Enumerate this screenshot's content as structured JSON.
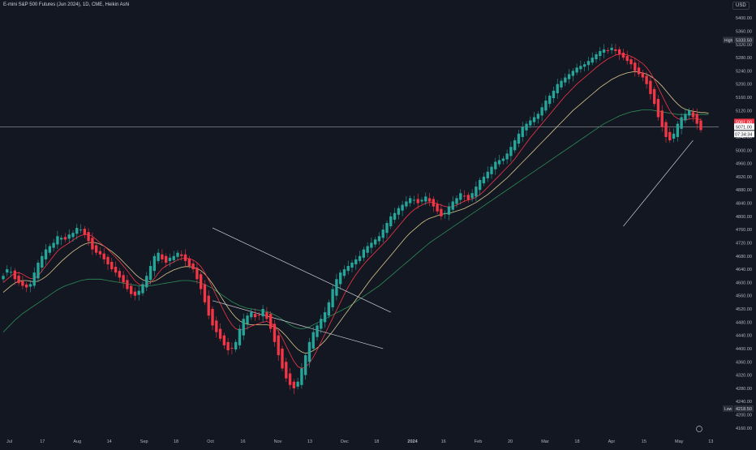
{
  "header": {
    "symbol_title": "E-mini S&P 500 Futures (Jun 2024), 1D, CME, Heikin Ashi",
    "currency": "USD"
  },
  "colors": {
    "background": "#131722",
    "bull": "#26a69a",
    "bear": "#f23645",
    "ma_fast": "#f23645",
    "ma_mid": "#d8c78a",
    "ma_slow": "#2e8b57",
    "trendline": "#d1d4dc",
    "axis_text": "#b2b5be"
  },
  "chart_data": {
    "type": "candlestick",
    "x_ticks": [
      "Jul",
      "17",
      "Aug",
      "14",
      "Sep",
      "18",
      "Oct",
      "16",
      "Nov",
      "13",
      "Dec",
      "18",
      "2024",
      "16",
      "Feb",
      "20",
      "Mar",
      "18",
      "Apr",
      "15",
      "May",
      "13"
    ],
    "y_ticks": [
      4160,
      4200,
      4240,
      4280,
      4320,
      4360,
      4400,
      4440,
      4480,
      4520,
      4560,
      4600,
      4640,
      4680,
      4720,
      4760,
      4800,
      4840,
      4880,
      4920,
      4960,
      5000,
      5040,
      5080,
      5120,
      5160,
      5200,
      5240,
      5280,
      5320,
      5360,
      5400
    ],
    "ylim": [
      4140,
      5420
    ],
    "high": {
      "label": "High",
      "value": "5333.50"
    },
    "low": {
      "label": "Low",
      "value": "4218.50"
    },
    "last_price": {
      "value": "5061.00",
      "level": 5061
    },
    "price_line": {
      "value": "5071.00",
      "level": 5071
    },
    "countdown": "07:34:34",
    "close_series": [
      4620,
      4640,
      4632,
      4610,
      4598,
      4590,
      4585,
      4595,
      4630,
      4660,
      4680,
      4700,
      4710,
      4720,
      4740,
      4735,
      4730,
      4745,
      4750,
      4765,
      4760,
      4745,
      4725,
      4700,
      4690,
      4685,
      4670,
      4655,
      4640,
      4630,
      4615,
      4600,
      4580,
      4565,
      4560,
      4575,
      4595,
      4620,
      4650,
      4680,
      4690,
      4670,
      4660,
      4675,
      4680,
      4690,
      4680,
      4665,
      4650,
      4640,
      4610,
      4580,
      4540,
      4500,
      4470,
      4450,
      4430,
      4410,
      4395,
      4400,
      4420,
      4460,
      4490,
      4500,
      4510,
      4495,
      4500,
      4520,
      4490,
      4460,
      4420,
      4380,
      4340,
      4310,
      4290,
      4280,
      4300,
      4340,
      4380,
      4420,
      4450,
      4470,
      4490,
      4510,
      4540,
      4580,
      4610,
      4630,
      4640,
      4650,
      4660,
      4670,
      4680,
      4700,
      4710,
      4720,
      4730,
      4740,
      4760,
      4780,
      4800,
      4810,
      4825,
      4835,
      4845,
      4855,
      4850,
      4840,
      4850,
      4860,
      4845,
      4830,
      4815,
      4800,
      4810,
      4830,
      4845,
      4855,
      4870,
      4860,
      4850,
      4870,
      4890,
      4910,
      4920,
      4935,
      4950,
      4965,
      4970,
      4975,
      4990,
      5010,
      5030,
      5050,
      5070,
      5080,
      5090,
      5100,
      5110,
      5130,
      5150,
      5165,
      5180,
      5200,
      5210,
      5220,
      5230,
      5240,
      5250,
      5255,
      5260,
      5270,
      5280,
      5290,
      5300,
      5305,
      5300,
      5310,
      5300,
      5290,
      5280,
      5270,
      5260,
      5240,
      5230,
      5220,
      5200,
      5170,
      5140,
      5100,
      5070,
      5040,
      5030,
      5050,
      5080,
      5100,
      5110,
      5120,
      5100,
      5080,
      5061
    ],
    "ma_fast_series": [
      4600,
      4610,
      4620,
      4628,
      4630,
      4625,
      4618,
      4612,
      4612,
      4620,
      4635,
      4650,
      4665,
      4680,
      4695,
      4705,
      4712,
      4720,
      4728,
      4736,
      4742,
      4745,
      4745,
      4740,
      4730,
      4720,
      4710,
      4700,
      4688,
      4676,
      4664,
      4650,
      4636,
      4620,
      4605,
      4595,
      4590,
      4592,
      4600,
      4612,
      4628,
      4642,
      4650,
      4656,
      4662,
      4668,
      4672,
      4674,
      4672,
      4668,
      4660,
      4648,
      4630,
      4608,
      4584,
      4560,
      4536,
      4512,
      4490,
      4472,
      4460,
      4456,
      4458,
      4462,
      4468,
      4472,
      4476,
      4480,
      4482,
      4478,
      4468,
      4452,
      4432,
      4408,
      4384,
      4362,
      4346,
      4340,
      4344,
      4356,
      4374,
      4396,
      4420,
      4444,
      4468,
      4492,
      4516,
      4540,
      4564,
      4586,
      4606,
      4624,
      4640,
      4654,
      4668,
      4680,
      4692,
      4704,
      4716,
      4728,
      4742,
      4756,
      4770,
      4784,
      4798,
      4810,
      4820,
      4828,
      4834,
      4840,
      4842,
      4842,
      4838,
      4834,
      4830,
      4828,
      4830,
      4834,
      4840,
      4846,
      4850,
      4852,
      4858,
      4866,
      4876,
      4888,
      4900,
      4912,
      4924,
      4936,
      4948,
      4960,
      4974,
      4990,
      5006,
      5022,
      5038,
      5052,
      5066,
      5080,
      5094,
      5108,
      5122,
      5136,
      5150,
      5164,
      5176,
      5188,
      5200,
      5210,
      5220,
      5230,
      5240,
      5250,
      5260,
      5268,
      5276,
      5282,
      5288,
      5290,
      5290,
      5288,
      5284,
      5278,
      5270,
      5262,
      5250,
      5234,
      5214,
      5190,
      5166,
      5142,
      5120,
      5104,
      5096,
      5092,
      5092,
      5094,
      5096,
      5096,
      5092
    ],
    "ma_mid_series": [
      4570,
      4580,
      4590,
      4598,
      4604,
      4606,
      4606,
      4604,
      4602,
      4604,
      4610,
      4618,
      4628,
      4640,
      4652,
      4664,
      4674,
      4684,
      4694,
      4702,
      4710,
      4716,
      4720,
      4722,
      4720,
      4716,
      4710,
      4702,
      4694,
      4684,
      4674,
      4662,
      4650,
      4638,
      4626,
      4616,
      4608,
      4604,
      4602,
      4604,
      4610,
      4618,
      4626,
      4632,
      4638,
      4642,
      4646,
      4648,
      4648,
      4646,
      4642,
      4636,
      4626,
      4612,
      4596,
      4578,
      4560,
      4542,
      4524,
      4508,
      4494,
      4484,
      4478,
      4474,
      4472,
      4472,
      4472,
      4472,
      4472,
      4470,
      4466,
      4460,
      4450,
      4438,
      4424,
      4410,
      4398,
      4390,
      4386,
      4388,
      4394,
      4402,
      4412,
      4424,
      4438,
      4452,
      4468,
      4484,
      4500,
      4516,
      4532,
      4548,
      4564,
      4580,
      4596,
      4612,
      4626,
      4640,
      4654,
      4668,
      4682,
      4696,
      4710,
      4724,
      4738,
      4750,
      4760,
      4770,
      4780,
      4788,
      4794,
      4798,
      4802,
      4806,
      4808,
      4810,
      4812,
      4816,
      4820,
      4824,
      4830,
      4836,
      4842,
      4850,
      4858,
      4866,
      4876,
      4886,
      4896,
      4906,
      4916,
      4928,
      4940,
      4952,
      4964,
      4976,
      4988,
      5000,
      5012,
      5024,
      5036,
      5048,
      5060,
      5072,
      5084,
      5096,
      5108,
      5120,
      5130,
      5140,
      5150,
      5160,
      5170,
      5180,
      5190,
      5198,
      5206,
      5214,
      5220,
      5226,
      5230,
      5234,
      5236,
      5238,
      5236,
      5234,
      5230,
      5224,
      5216,
      5206,
      5194,
      5180,
      5166,
      5152,
      5140,
      5130,
      5124,
      5120,
      5118,
      5116,
      5114,
      5114,
      5112
    ],
    "ma_slow_series": [
      4450,
      4462,
      4474,
      4486,
      4496,
      4506,
      4514,
      4522,
      4530,
      4538,
      4546,
      4554,
      4562,
      4570,
      4578,
      4584,
      4590,
      4594,
      4598,
      4602,
      4606,
      4608,
      4610,
      4610,
      4610,
      4610,
      4608,
      4606,
      4604,
      4602,
      4600,
      4598,
      4596,
      4594,
      4592,
      4590,
      4590,
      4590,
      4590,
      4592,
      4594,
      4596,
      4598,
      4600,
      4602,
      4604,
      4606,
      4606,
      4606,
      4604,
      4602,
      4598,
      4594,
      4588,
      4582,
      4574,
      4566,
      4558,
      4550,
      4542,
      4536,
      4530,
      4526,
      4522,
      4520,
      4518,
      4516,
      4514,
      4512,
      4508,
      4502,
      4496,
      4488,
      4480,
      4472,
      4466,
      4462,
      4460,
      4462,
      4466,
      4472,
      4478,
      4484,
      4490,
      4496,
      4502,
      4508,
      4514,
      4520,
      4526,
      4534,
      4542,
      4550,
      4558,
      4566,
      4574,
      4582,
      4590,
      4600,
      4610,
      4620,
      4630,
      4640,
      4650,
      4660,
      4670,
      4680,
      4690,
      4700,
      4710,
      4720,
      4728,
      4736,
      4744,
      4752,
      4760,
      4768,
      4776,
      4784,
      4792,
      4800,
      4808,
      4816,
      4824,
      4832,
      4840,
      4848,
      4856,
      4864,
      4872,
      4880,
      4888,
      4896,
      4904,
      4912,
      4920,
      4928,
      4936,
      4944,
      4952,
      4960,
      4968,
      4976,
      4984,
      4992,
      5000,
      5008,
      5016,
      5024,
      5032,
      5040,
      5048,
      5056,
      5064,
      5072,
      5080,
      5086,
      5092,
      5098,
      5104,
      5108,
      5112,
      5116,
      5118,
      5120,
      5122,
      5122,
      5122,
      5120,
      5118,
      5116,
      5114,
      5112,
      5110,
      5108,
      5108,
      5108,
      5108,
      5108,
      5108,
      5108,
      5108,
      5108
    ],
    "trendlines": [
      {
        "from": [
          54,
          4765
        ],
        "to": [
          100,
          4510
        ]
      },
      {
        "from": [
          54,
          4545
        ],
        "to": [
          98,
          4400
        ]
      },
      {
        "from": [
          160,
          4770
        ],
        "to": [
          178,
          5030
        ]
      }
    ]
  }
}
